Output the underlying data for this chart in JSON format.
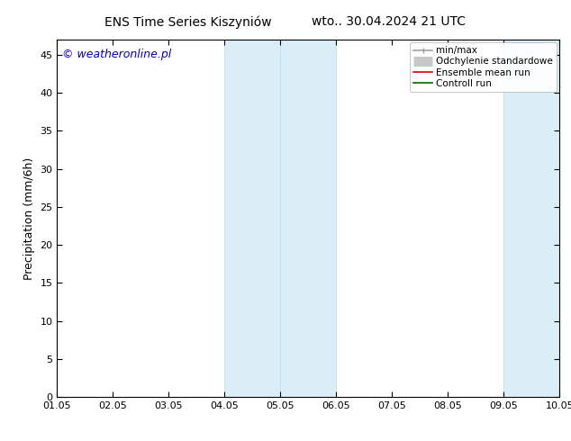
{
  "title_left": "ENS Time Series Kiszyniów",
  "title_right": "wto.. 30.04.2024 21 UTC",
  "ylabel": "Precipitation (mm/6h)",
  "watermark": "© weatheronline.pl",
  "xlim_min": 0,
  "xlim_max": 9,
  "ylim_min": 0,
  "ylim_max": 47,
  "yticks": [
    0,
    5,
    10,
    15,
    20,
    25,
    30,
    35,
    40,
    45
  ],
  "xtick_labels": [
    "01.05",
    "02.05",
    "03.05",
    "04.05",
    "05.05",
    "06.05",
    "07.05",
    "08.05",
    "09.05",
    "10.05"
  ],
  "xtick_positions": [
    0,
    1,
    2,
    3,
    4,
    5,
    6,
    7,
    8,
    9
  ],
  "shaded_bands": [
    {
      "x_start": 3.0,
      "x_end": 4.0
    },
    {
      "x_start": 4.0,
      "x_end": 5.0
    },
    {
      "x_start": 8.0,
      "x_end": 9.0
    }
  ],
  "band_color": "#daeef8",
  "band_edge_color": "#b8ddf0",
  "background_color": "#ffffff",
  "plot_bg_color": "#ffffff",
  "legend_items": [
    {
      "label": "min/max",
      "color": "#a0a0a0",
      "lw": 1.2
    },
    {
      "label": "Odchylenie standardowe",
      "color": "#c8c8c8",
      "lw": 8
    },
    {
      "label": "Ensemble mean run",
      "color": "#dd0000",
      "lw": 1.2
    },
    {
      "label": "Controll run",
      "color": "#006600",
      "lw": 1.2
    }
  ],
  "title_fontsize": 10,
  "axis_label_fontsize": 9,
  "tick_fontsize": 8,
  "legend_fontsize": 7.5,
  "watermark_color": "#0000cc",
  "watermark_fontsize": 9
}
